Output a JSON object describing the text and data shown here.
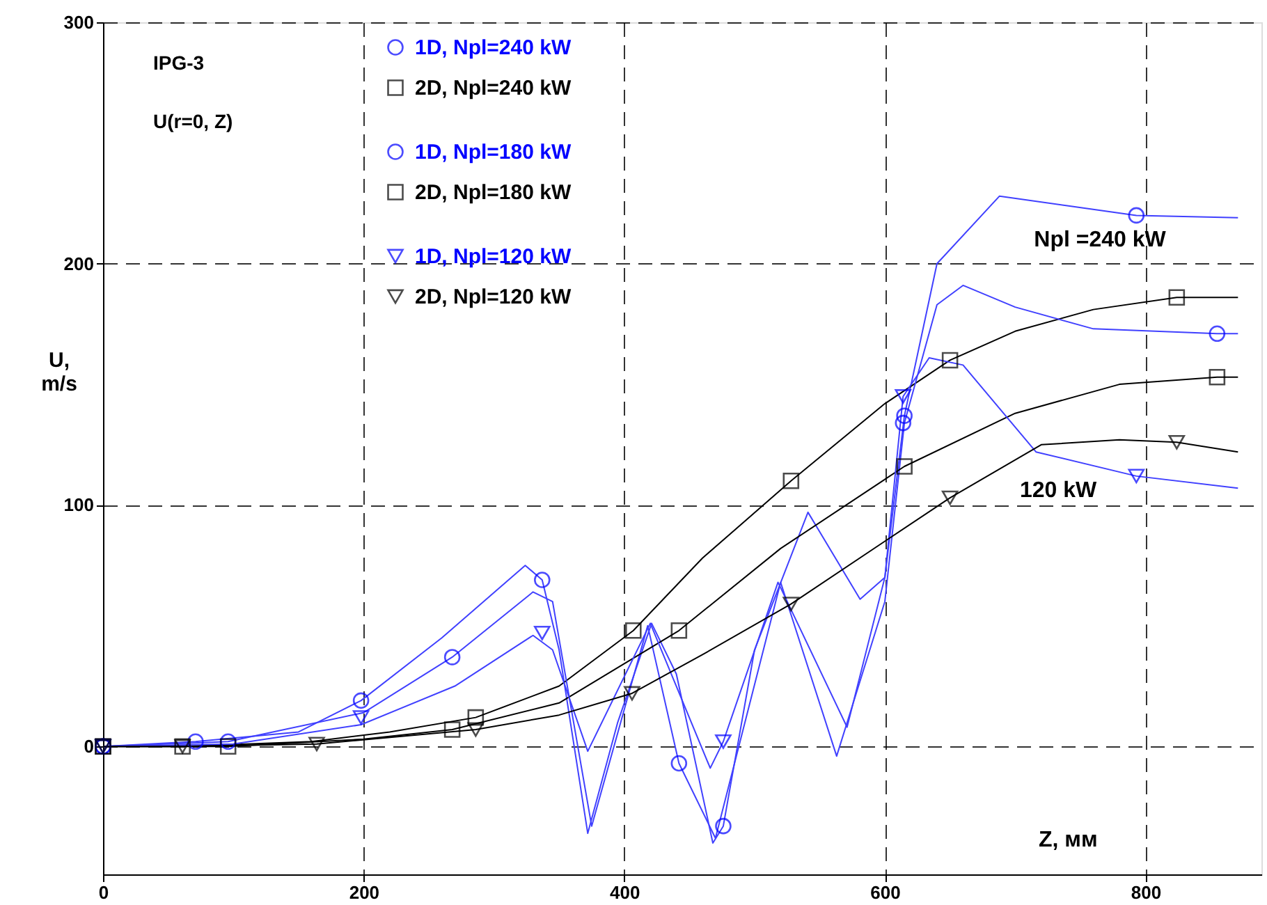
{
  "chart_data": {
    "type": "line",
    "xlabel": "Z, мм",
    "ylabel": "U,\nm/s",
    "xlim": [
      0,
      889
    ],
    "ylim": [
      -53,
      300
    ],
    "xticks": [
      0,
      200,
      400,
      600,
      800
    ],
    "yticks": [
      0,
      100,
      200,
      300
    ],
    "grid": true,
    "legend": "top left",
    "annotations": [
      "IPG-3",
      "U(r=0, Z)",
      "Npl =240 kW",
      "120 kW"
    ],
    "series": [
      {
        "color": "#4040ff",
        "marker": "none",
        "x": [
          0,
          71,
          150,
          198,
          260,
          324,
          337,
          350,
          372,
          395,
          421,
          440,
          468,
          476,
          500,
          541,
          581,
          600,
          615,
          640,
          688,
          740,
          793,
          871
        ],
        "values": [
          0,
          2,
          6,
          19,
          45,
          75,
          69,
          40,
          -36,
          10,
          51,
          30,
          -40,
          -33,
          40,
          97,
          61,
          70,
          137,
          200,
          228,
          224,
          220,
          219
        ]
      },
      {
        "color": "#000000",
        "marker": "none",
        "x": [
          0,
          61,
          160,
          220,
          286,
          350,
          407,
          460,
          528,
          600,
          650,
          700,
          760,
          824,
          871
        ],
        "values": [
          0,
          0,
          2,
          6,
          12,
          25,
          48,
          78,
          110,
          142,
          160,
          172,
          181,
          186,
          186
        ]
      },
      {
        "color": "#4040ff",
        "marker": "none",
        "x": [
          0,
          96,
          200,
          268,
          330,
          345,
          375,
          418,
          442,
          470,
          520,
          563,
          600,
          615,
          640,
          660,
          700,
          760,
          855,
          871
        ],
        "values": [
          0,
          2,
          14,
          37,
          64,
          60,
          -33,
          50,
          -7,
          -38,
          68,
          -4,
          60,
          134,
          183,
          191,
          182,
          173,
          171,
          171
        ]
      },
      {
        "color": "#000000",
        "marker": "none",
        "x": [
          0,
          96,
          200,
          268,
          350,
          442,
          520,
          615,
          700,
          780,
          855,
          871
        ],
        "values": [
          0,
          0,
          3,
          7,
          18,
          48,
          82,
          116,
          138,
          150,
          153,
          153
        ]
      },
      {
        "color": "#4040ff",
        "marker": "none",
        "x": [
          0,
          100,
          198,
          270,
          330,
          345,
          372,
          420,
          466,
          476,
          518,
          571,
          600,
          614,
          634,
          660,
          716,
          793,
          871
        ],
        "values": [
          0,
          1,
          9,
          25,
          46,
          40,
          -2,
          51,
          -9,
          2,
          68,
          8,
          70,
          145,
          161,
          158,
          122,
          112,
          107
        ]
      },
      {
        "color": "#000000",
        "marker": "none",
        "x": [
          0,
          61,
          164,
          286,
          350,
          406,
          460,
          528,
          600,
          650,
          720,
          780,
          824,
          871
        ],
        "values": [
          0,
          0,
          1,
          7,
          13,
          22,
          38,
          59,
          85,
          103,
          125,
          127,
          126,
          122
        ]
      },
      {
        "type": "scatter",
        "name": "1D, Npl=240 kW",
        "color": "#0000ff",
        "marker": "circle",
        "x": [
          0,
          71,
          198,
          337,
          476,
          615,
          793
        ],
        "values": [
          0,
          2,
          19,
          69,
          -33,
          137,
          220
        ]
      },
      {
        "type": "scatter",
        "name": "2D, Npl=240 kW",
        "color": "#000000",
        "marker": "square",
        "x": [
          0,
          61,
          286,
          407,
          528,
          650,
          824
        ],
        "values": [
          0,
          0,
          12,
          48,
          110,
          160,
          186
        ]
      },
      {
        "type": "scatter",
        "name": "1D, Npl=180 kW",
        "color": "#0000ff",
        "marker": "circle",
        "x": [
          0,
          96,
          268,
          442,
          614,
          855
        ],
        "values": [
          0,
          2,
          37,
          -7,
          134,
          171
        ]
      },
      {
        "type": "scatter",
        "name": "2D, Npl=180 kW",
        "color": "#000000",
        "marker": "square",
        "x": [
          0,
          96,
          268,
          442,
          615,
          855
        ],
        "values": [
          0,
          0,
          7,
          48,
          116,
          153
        ]
      },
      {
        "type": "scatter",
        "name": "1D, Npl=120 kW",
        "color": "#0000ff",
        "marker": "triangle",
        "x": [
          0,
          198,
          337,
          476,
          614,
          793
        ],
        "values": [
          0,
          12,
          47,
          2,
          145,
          112
        ]
      },
      {
        "type": "scatter",
        "name": "2D, Npl=120 kW",
        "color": "#000000",
        "marker": "triangle",
        "x": [
          0,
          61,
          164,
          286,
          406,
          528,
          650,
          824
        ],
        "values": [
          0,
          0,
          1,
          7,
          22,
          59,
          103,
          126
        ]
      }
    ]
  }
}
